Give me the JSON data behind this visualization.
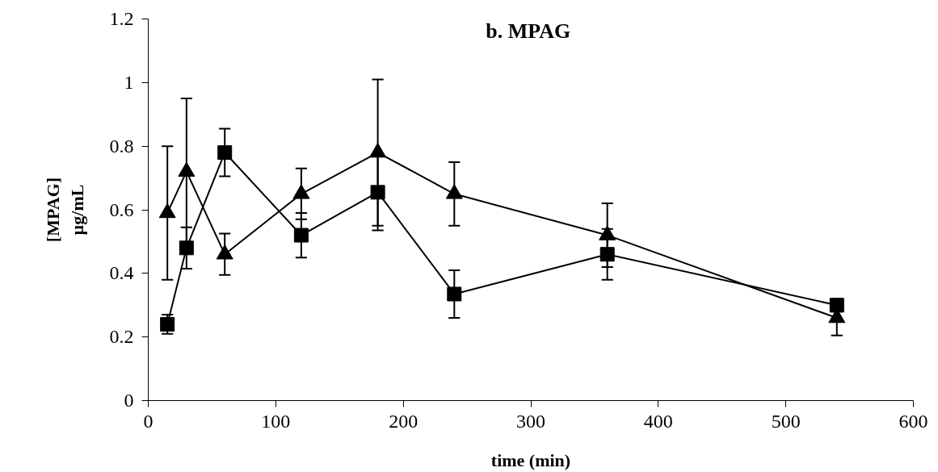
{
  "chart_data": {
    "type": "line",
    "title": "b.  MPAG",
    "xlabel": "time (min)",
    "ylabel": "[MPAG]\nµg/mL",
    "x": [
      15,
      30,
      60,
      120,
      180,
      240,
      360,
      540
    ],
    "series": [
      {
        "color": "#000000",
        "marker": "square",
        "values": [
          0.24,
          0.48,
          0.78,
          0.52,
          0.655,
          0.335,
          0.46,
          0.3
        ],
        "errors": [
          0.03,
          0.065,
          0.075,
          0.07,
          0.12,
          0.075,
          0.08,
          0.02
        ]
      },
      {
        "color": "#000000",
        "marker": "triangle",
        "values": [
          0.59,
          0.72,
          0.46,
          0.65,
          0.78,
          0.65,
          0.52,
          0.26
        ],
        "errors": [
          0.21,
          0.23,
          0.065,
          0.08,
          0.23,
          0.1,
          0.1,
          0.055
        ]
      }
    ],
    "xlim": [
      0,
      600
    ],
    "xticks": [
      0,
      100,
      200,
      300,
      400,
      500,
      600
    ],
    "ylim": [
      0,
      1.2
    ],
    "yticks": [
      0,
      {
        "value": 0.2,
        "label": "0.2"
      },
      {
        "value": 0.4,
        "label": "0.4"
      },
      {
        "value": 0.6,
        "label": "0.6"
      },
      {
        "value": 0.8,
        "label": "0.8"
      },
      1,
      {
        "value": 1.2,
        "label": "1.2"
      }
    ],
    "grid": false,
    "line_style": "solid"
  }
}
